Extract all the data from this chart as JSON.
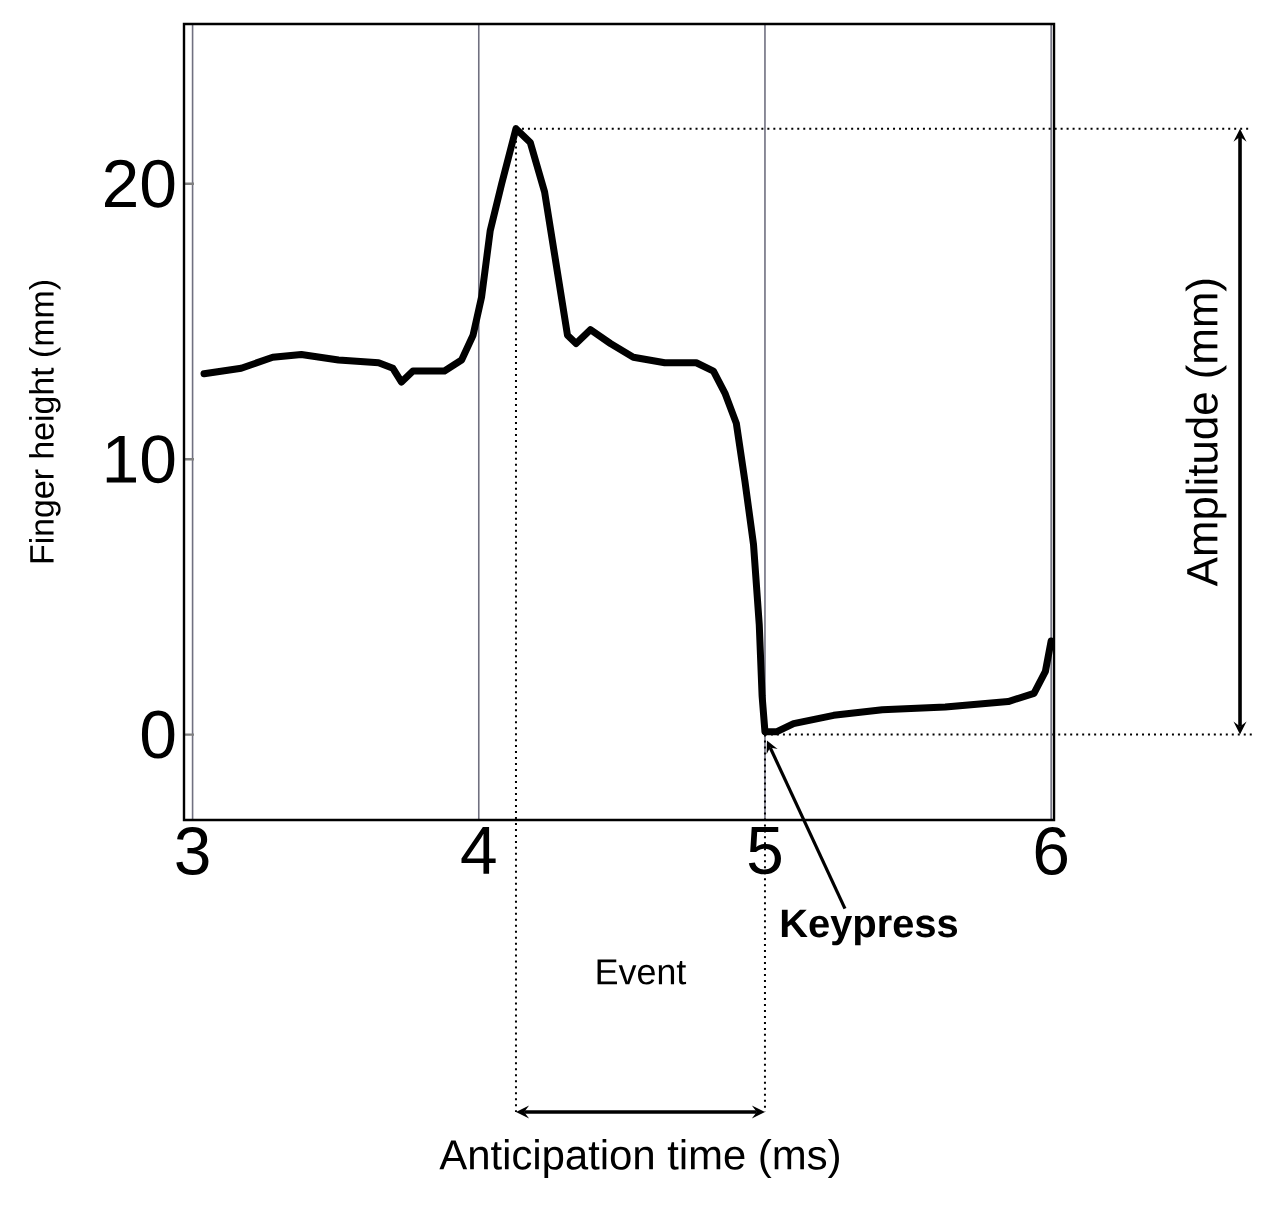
{
  "chart_data": {
    "type": "line",
    "ylabel": "Finger height (mm)",
    "x": [
      3.04,
      3.17,
      3.28,
      3.38,
      3.51,
      3.65,
      3.7,
      3.73,
      3.77,
      3.88,
      3.94,
      3.98,
      4.01,
      4.04,
      4.08,
      4.13,
      4.18,
      4.23,
      4.27,
      4.31,
      4.34,
      4.39,
      4.46,
      4.54,
      4.65,
      4.76,
      4.82,
      4.86,
      4.9,
      4.93,
      4.96,
      4.98,
      4.99,
      5.0,
      5.04,
      5.1,
      5.24,
      5.41,
      5.63,
      5.85,
      5.94,
      5.98,
      6.0
    ],
    "series": [
      {
        "color": "#000000",
        "values": [
          13.1,
          13.3,
          13.7,
          13.8,
          13.6,
          13.5,
          13.3,
          12.8,
          13.2,
          13.2,
          13.6,
          14.5,
          15.9,
          18.3,
          20.0,
          22.0,
          21.5,
          19.7,
          17.1,
          14.5,
          14.2,
          14.7,
          14.2,
          13.7,
          13.5,
          13.5,
          13.2,
          12.4,
          11.3,
          9.2,
          6.9,
          4.0,
          1.4,
          0.1,
          0.1,
          0.4,
          0.7,
          0.9,
          1.0,
          1.2,
          1.5,
          2.3,
          3.4
        ]
      }
    ],
    "xlim": [
      2.97,
      6.01
    ],
    "ylim": [
      -3.1,
      25.8
    ],
    "xticks": [
      3,
      4,
      5,
      6
    ],
    "yticks": [
      0,
      10,
      20
    ],
    "grid": "x",
    "marker": "none",
    "line_style": "solid",
    "ref_lines": [
      {
        "axis": "x",
        "value": 4.13,
        "color": "#000000",
        "line_style": "dotted"
      },
      {
        "axis": "x",
        "value": 5,
        "color": "#000000",
        "line_style": "dotted"
      },
      {
        "axis": "y",
        "value": 22,
        "color": "#000000",
        "line_style": "dotted"
      },
      {
        "axis": "y",
        "value": 0,
        "color": "#000000",
        "line_style": "dotted"
      }
    ],
    "annotations": [
      "Event",
      {
        "text": "Keypress",
        "x": 5,
        "y": 0
      },
      "Amplitude (mm)",
      "Anticipation time (ms)"
    ]
  }
}
